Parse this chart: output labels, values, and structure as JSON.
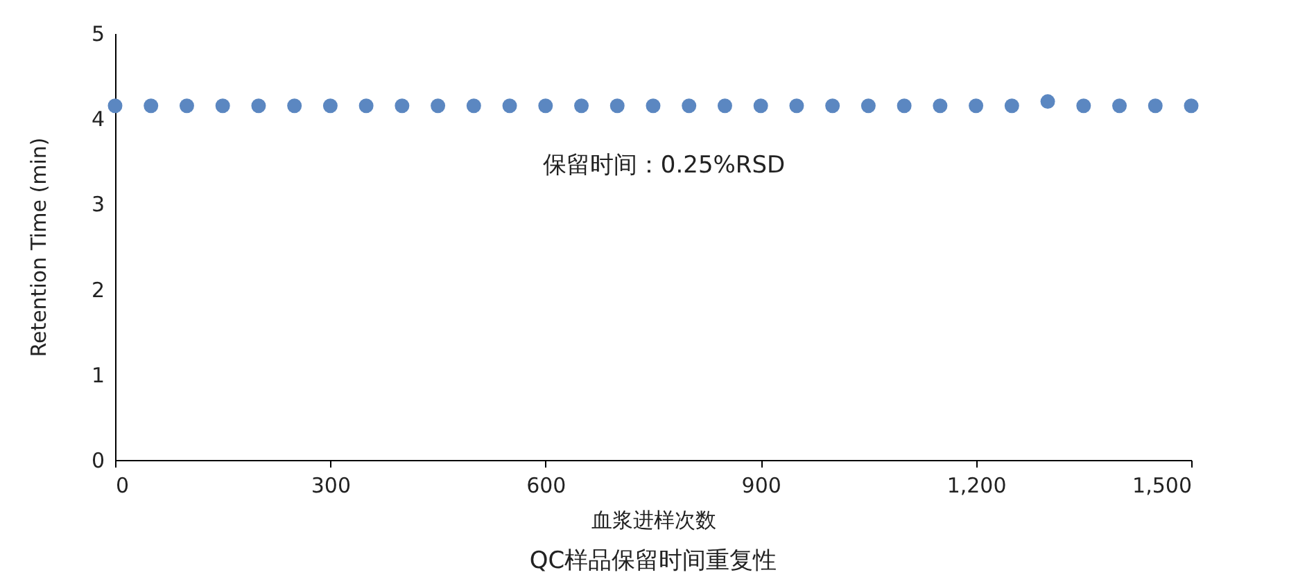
{
  "chart_data": {
    "type": "scatter",
    "title": "QC样品保留时间重复性",
    "xlabel": "血浆进样次数",
    "ylabel": "Retention Time (min)",
    "x": [
      0,
      50,
      100,
      150,
      200,
      250,
      300,
      350,
      400,
      450,
      500,
      550,
      600,
      650,
      700,
      750,
      800,
      850,
      900,
      950,
      1000,
      1050,
      1100,
      1150,
      1200,
      1250,
      1300,
      1350,
      1400,
      1450,
      1500
    ],
    "series": [
      {
        "color": "#5b87c1",
        "values": [
          4.15,
          4.15,
          4.15,
          4.15,
          4.15,
          4.15,
          4.15,
          4.15,
          4.15,
          4.15,
          4.15,
          4.15,
          4.15,
          4.15,
          4.15,
          4.15,
          4.15,
          4.15,
          4.15,
          4.15,
          4.15,
          4.15,
          4.15,
          4.15,
          4.15,
          4.15,
          4.2,
          4.15,
          4.15,
          4.15,
          4.15
        ]
      }
    ],
    "xlim": [
      0,
      1500
    ],
    "xticks": [
      0,
      300,
      600,
      900,
      {
        "value": 1200,
        "label": "1,200"
      },
      {
        "value": 1500,
        "label": "1,500"
      }
    ],
    "ylim": [
      0,
      5
    ],
    "yticks": [
      0,
      1,
      2,
      3,
      4,
      5
    ],
    "annotations": [
      "保留时间：0.25%RSD"
    ],
    "grid": false,
    "marker": "circle"
  }
}
